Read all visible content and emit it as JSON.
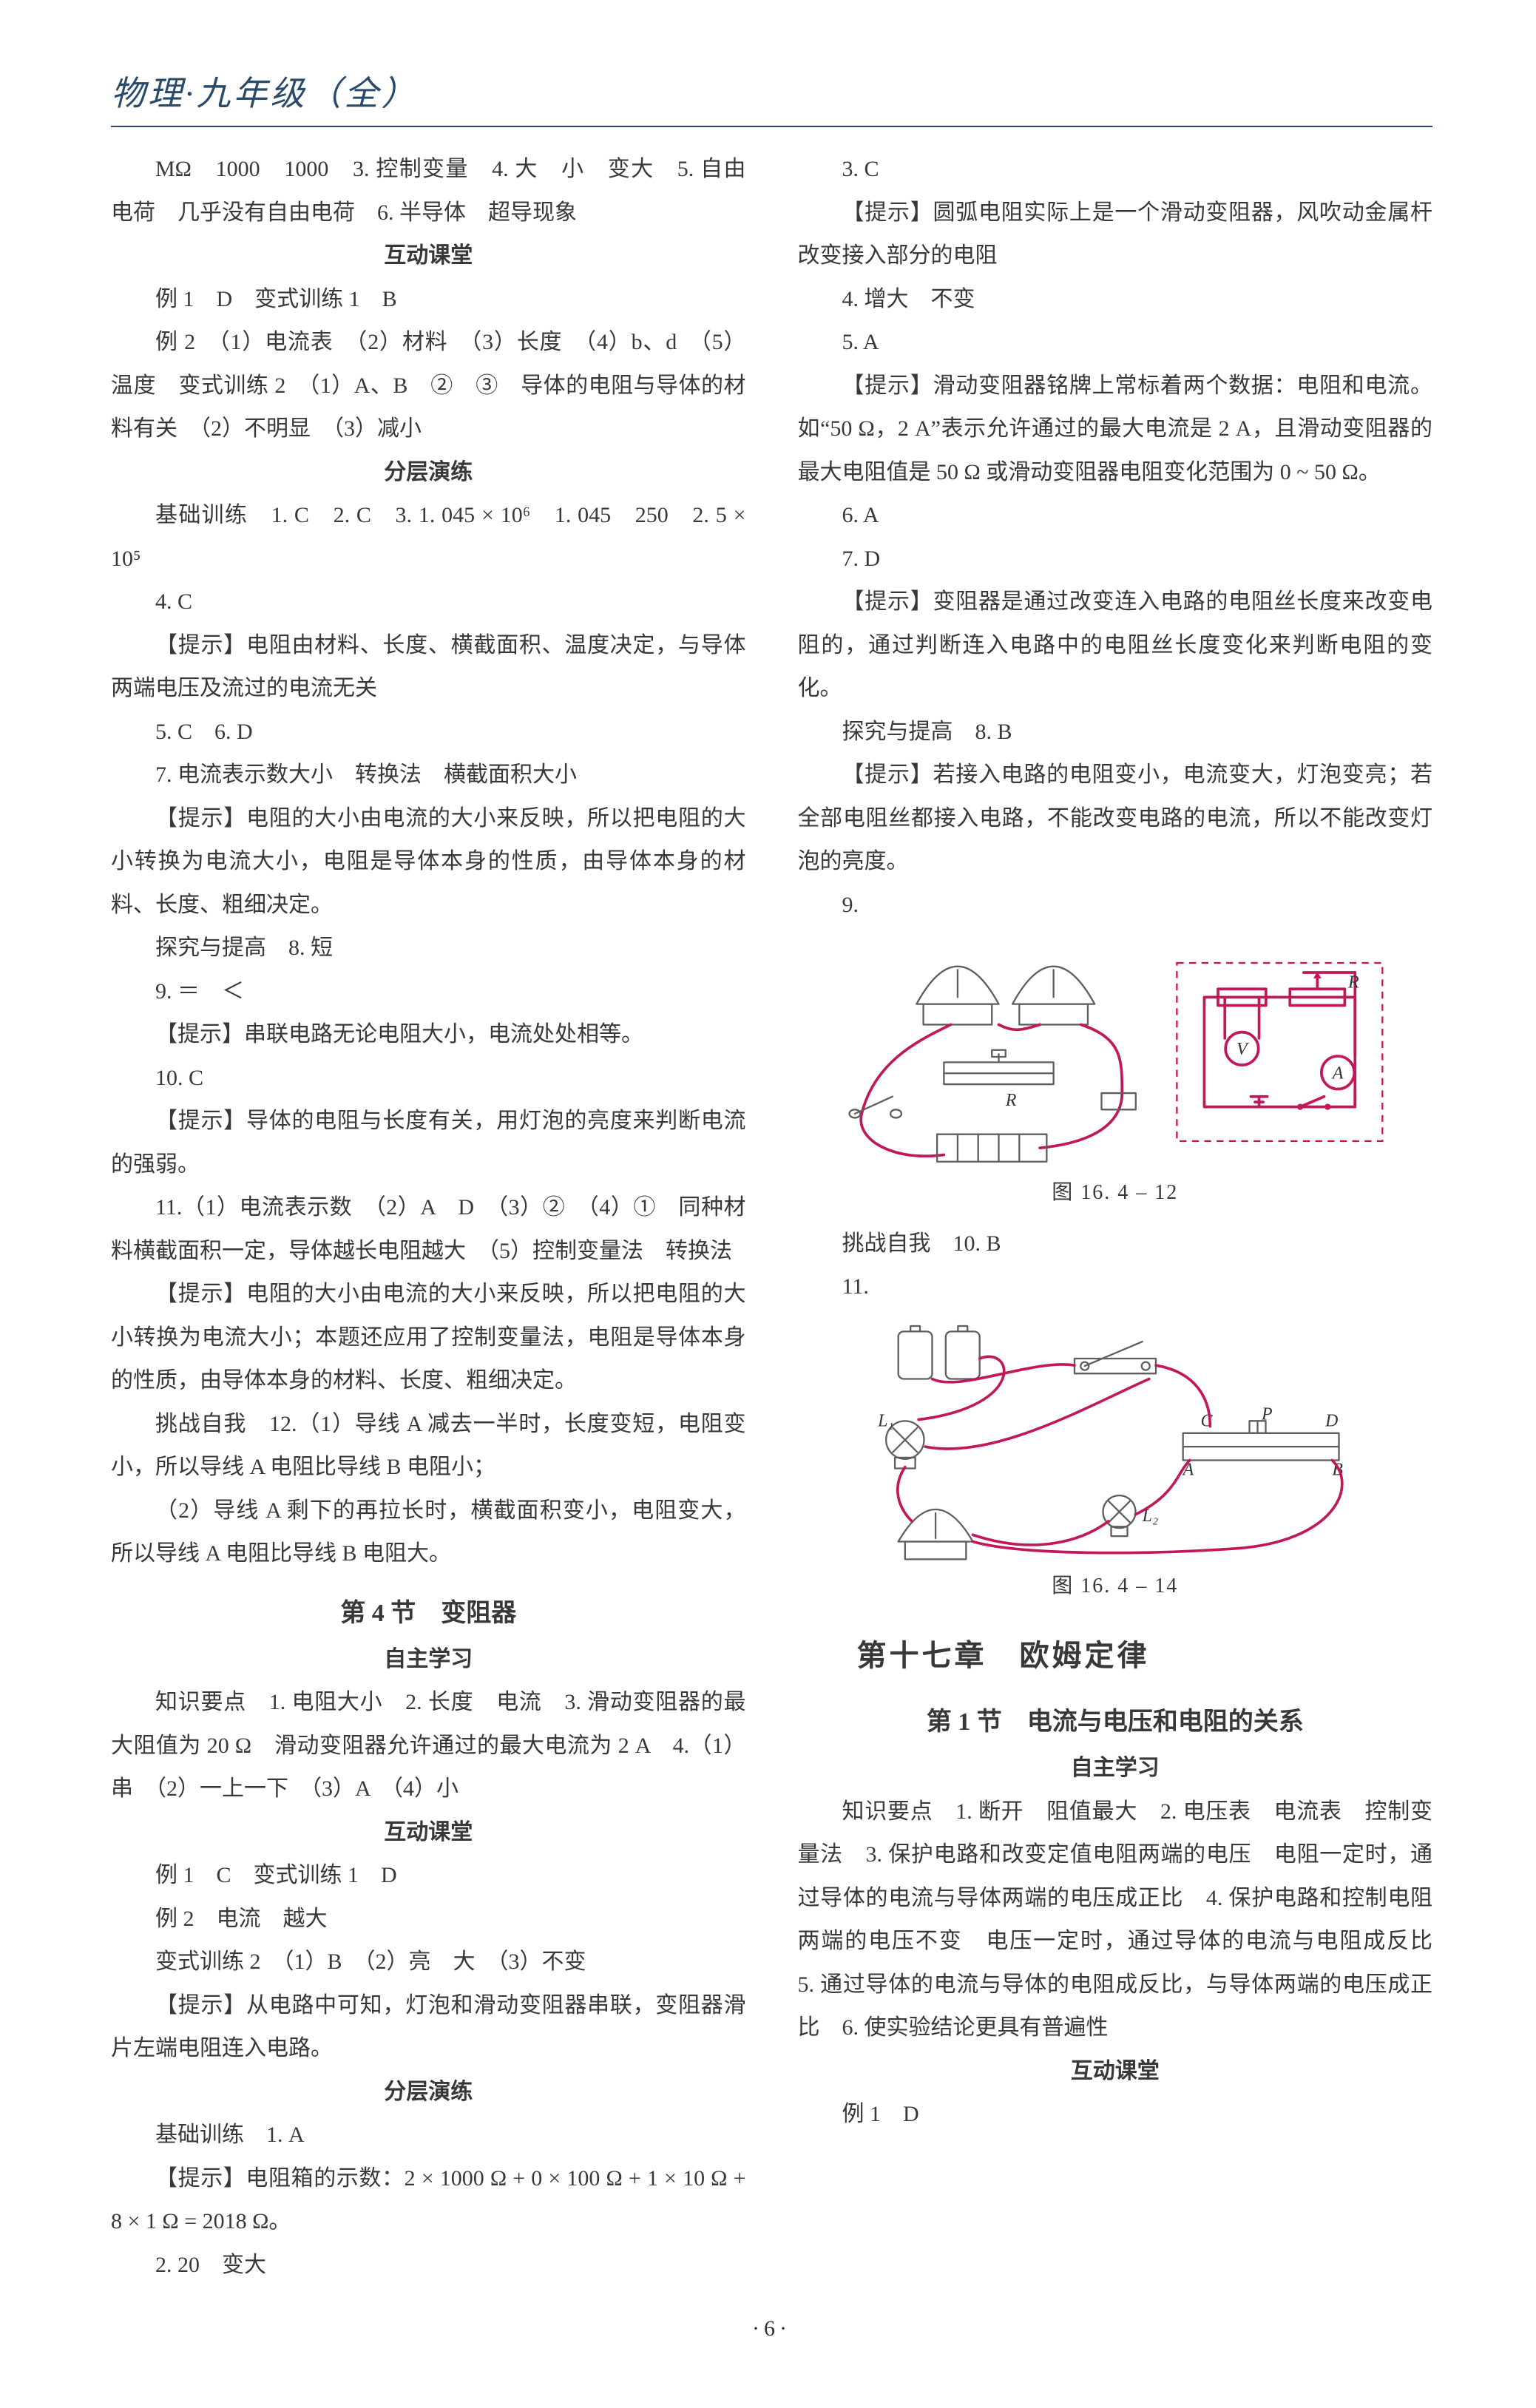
{
  "header": {
    "title": "物理·九年级（全）"
  },
  "page_number": "·6·",
  "watermarks": {
    "w1": "",
    "w2": ""
  },
  "left": {
    "p01": "MΩ　1000　1000　3. 控制变量　4. 大　小　变大　5. 自由电荷　几乎没有自由电荷　6. 半导体　超导现象",
    "h01": "互动课堂",
    "p02": "例 1　D　变式训练 1　B",
    "p03": "例 2　（1）电流表　（2）材料　（3）长度　（4）b、d　（5）温度　变式训练 2　（1）A、B　②　③　导体的电阻与导体的材料有关　（2）不明显　（3）减小",
    "h02": "分层演练",
    "p04": "基础训练　1. C　2. C　3. 1. 045 × 10⁶　1. 045　250　2. 5 × 10⁵",
    "p05": "4. C",
    "p06": "【提示】电阻由材料、长度、横截面积、温度决定，与导体两端电压及流过的电流无关",
    "p07": "5. C　6. D",
    "p08": "7. 电流表示数大小　转换法　横截面积大小",
    "p09": "【提示】电阻的大小由电流的大小来反映，所以把电阻的大小转换为电流大小，电阻是导体本身的性质，由导体本身的材料、长度、粗细决定。",
    "p10": "探究与提高　8. 短",
    "p11": "9. ＝　＜",
    "p12": "【提示】串联电路无论电阻大小，电流处处相等。",
    "p13": "10. C",
    "p14": "【提示】导体的电阻与长度有关，用灯泡的亮度来判断电流的强弱。",
    "p15": "11.（1）电流表示数　（2）A　D　（3）②　（4）①　同种材料横截面积一定，导体越长电阻越大　（5）控制变量法　转换法",
    "p16": "【提示】电阻的大小由电流的大小来反映，所以把电阻的大小转换为电流大小；本题还应用了控制变量法，电阻是导体本身的性质，由导体本身的材料、长度、粗细决定。",
    "p17": "挑战自我　12.（1）导线 A 减去一半时，长度变短，电阻变小，所以导线 A 电阻比导线 B 电阻小；",
    "p18": "（2）导线 A 剩下的再拉长时，横截面积变小，电阻变大，所以导线 A 电阻比导线 B 电阻大。",
    "sec4_title": "第 4 节　变阻器",
    "h03": "自主学习",
    "p19": "知识要点　1. 电阻大小　2. 长度　电流　3. 滑动变阻器的最大阻值为 20 Ω　滑动变阻器允许通过的最大电流为 2 A　4.（1）串　（2）一上一下　（3）A　（4）小",
    "h04": "互动课堂",
    "p20": "例 1　C　变式训练 1　D",
    "p21": "例 2　电流　越大",
    "p22": "变式训练 2　（1）B　（2）亮　大　（3）不变",
    "p23": "【提示】从电路中可知，灯泡和滑动变阻器串联，变阻器滑片左端电阻连入电路。",
    "h05": "分层演练",
    "p24": "基础训练　1. A",
    "p25": "【提示】电阻箱的示数：2 × 1000 Ω + 0 × 100 Ω + 1 × 10 Ω + 8 × 1 Ω = 2018 Ω。",
    "p26": "2. 20　变大"
  },
  "right": {
    "p01": "3. C",
    "p02": "【提示】圆弧电阻实际上是一个滑动变阻器，风吹动金属杆改变接入部分的电阻",
    "p03": "4. 增大　不变",
    "p04": "5. A",
    "p05": "【提示】滑动变阻器铭牌上常标着两个数据：电阻和电流。如“50 Ω，2 A”表示允许通过的最大电流是 2 A，且滑动变阻器的最大电阻值是 50 Ω 或滑动变阻器电阻变化范围为 0 ~ 50 Ω。",
    "p06": "6. A",
    "p07": "7. D",
    "p08": "【提示】变阻器是通过改变连入电路的电阻丝长度来改变电阻的，通过判断连入电路中的电阻丝长度变化来判断电阻的变化。",
    "p09": "探究与提高　8. B",
    "p10": "【提示】若接入电路的电阻变小，电流变大，灯泡变亮；若全部电阻丝都接入电路，不能改变电路的电流，所以不能改变灯泡的亮度。",
    "p11": "9.",
    "fig1": {
      "caption": "图 16. 4 – 12",
      "colors": {
        "line": "#c2185b",
        "outline": "#5e5e5e",
        "dash": "#c2185b",
        "text": "#333333"
      },
      "labels": {
        "R_sketch": "R",
        "R_schem": "R",
        "V": "V",
        "A": "A"
      }
    },
    "p12": "挑战自我　10. B",
    "p13": "11.",
    "fig2": {
      "caption": "图 16. 4 – 14",
      "colors": {
        "line": "#c2185b",
        "outline": "#5e5e5e",
        "text": "#333333"
      },
      "labels": {
        "L1": "L₁",
        "L2": "L₂",
        "A": "A",
        "B": "B",
        "C": "C",
        "D": "D",
        "P": "P"
      }
    },
    "ch17_title": "第十七章　欧姆定律",
    "sec1_title": "第 1 节　电流与电压和电阻的关系",
    "h01": "自主学习",
    "p14": "知识要点　1. 断开　阻值最大　2. 电压表　电流表　控制变量法　3. 保护电路和改变定值电阻两端的电压　电阻一定时，通过导体的电流与导体两端的电压成正比　4. 保护电路和控制电阻两端的电压不变　电压一定时，通过导体的电流与电阻成反比　5. 通过导体的电流与导体的电阻成反比，与导体两端的电压成正比　6. 使实验结论更具有普遍性",
    "h02": "互动课堂",
    "p15": "例 1　D"
  },
  "figure_style": {
    "stroke_width_main": 4,
    "stroke_width_thin": 2.5,
    "dash_pattern": "10,8",
    "svg_font_size": 26,
    "svg_font_family": "Times New Roman, serif"
  }
}
